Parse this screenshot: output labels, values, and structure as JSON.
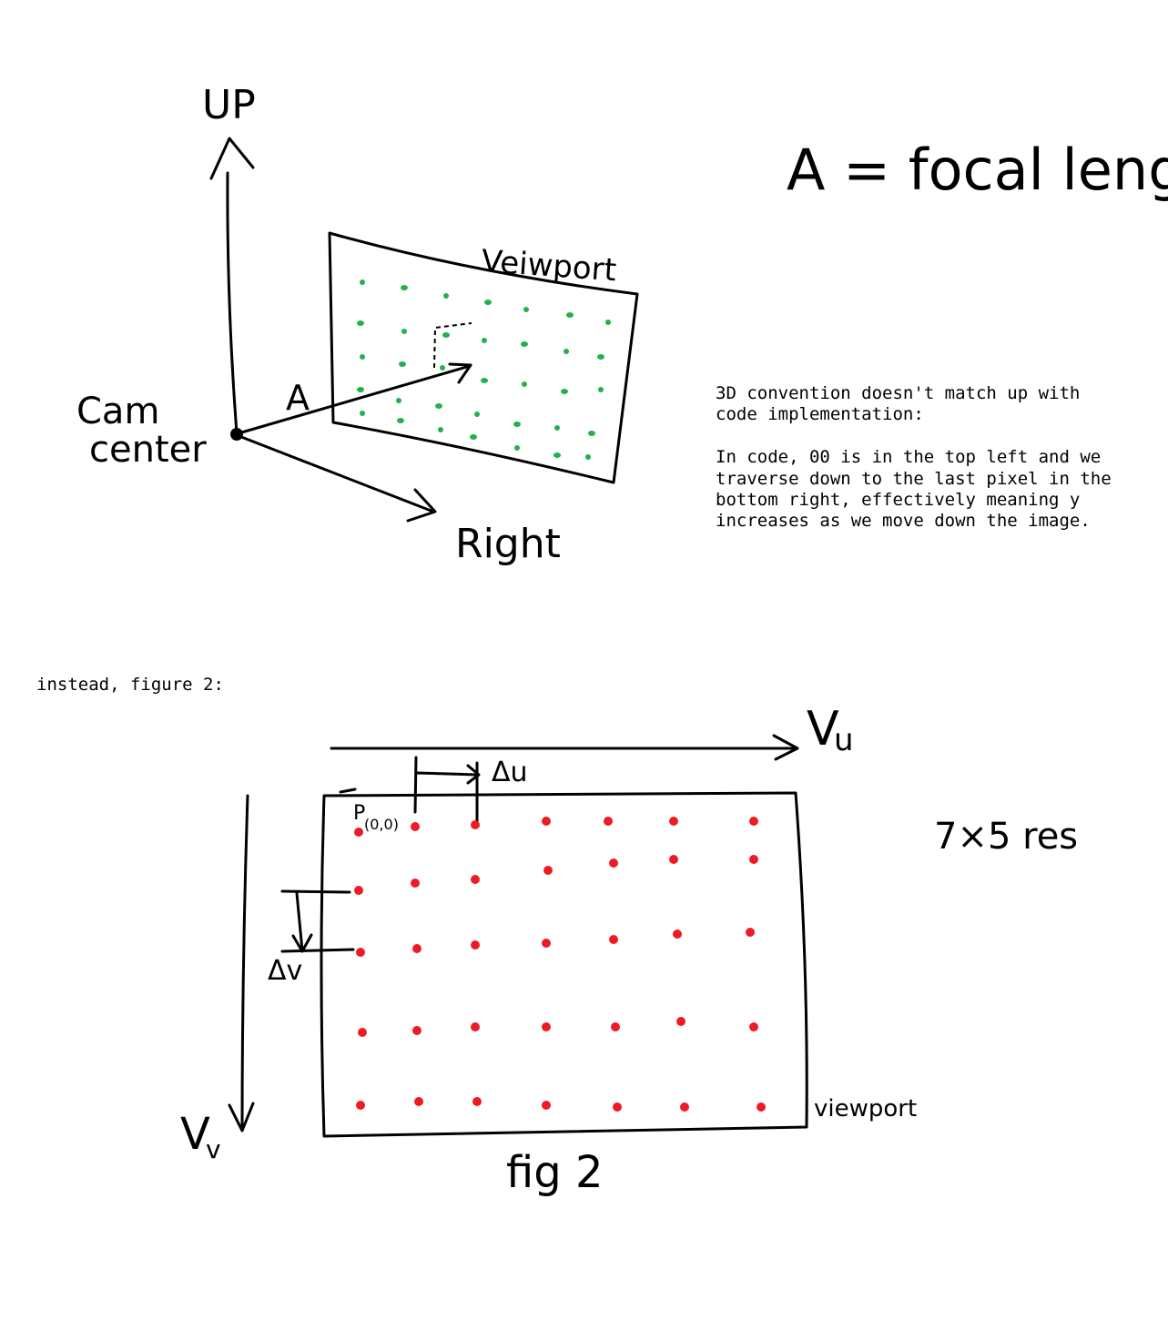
{
  "figure1": {
    "axis_up_label": "UP",
    "axis_right_label": "Right",
    "cam_label_line1": "Cam",
    "cam_label_line2": "center",
    "focal_label": "A",
    "viewport_label": "Veiwport",
    "focal_definition": "A = focal length",
    "dot_color": "#22b14c"
  },
  "note": {
    "line1": "3D convention doesn't match up with code implementation:",
    "line2": "In code, 00 is in the top left and we traverse down to the last pixel in the bottom right, effectively meaning y increases as we move down the image."
  },
  "figure2_intro": "instead, figure 2:",
  "figure2": {
    "vu_label": "V",
    "vu_sub": "u",
    "vv_label": "V",
    "vv_sub": "v",
    "du_label": "Δu",
    "dv_label": "Δv",
    "origin_label": "P",
    "origin_sub": "(0,0)",
    "res_label": "7×5 res",
    "viewport_label": "viewport",
    "caption": "fig 2",
    "resolution": {
      "cols": 7,
      "rows": 5
    },
    "dot_color": "#ed1c24"
  }
}
